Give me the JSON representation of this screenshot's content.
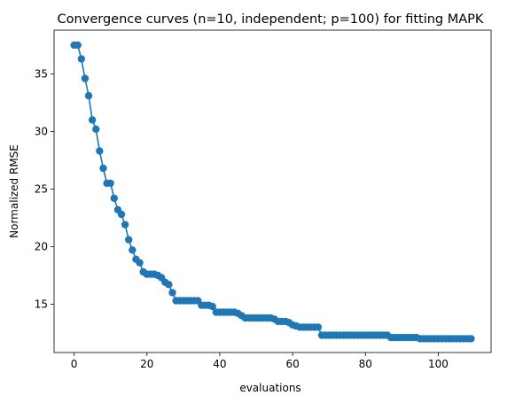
{
  "chart_data": {
    "type": "line",
    "title": "Convergence curves (n=10, independent; p=100) for fitting MAPK",
    "xlabel": "evaluations",
    "ylabel": "Normalized RMSE",
    "xlim": [
      -5.5,
      114.5
    ],
    "ylim": [
      10.8,
      38.8
    ],
    "x_ticks": [
      0,
      20,
      40,
      60,
      80,
      100
    ],
    "y_ticks": [
      15,
      20,
      25,
      30,
      35
    ],
    "grid": false,
    "legend": "none",
    "marker": "circle",
    "color": "#1f77b4",
    "series": [
      {
        "x": [
          0,
          1,
          2,
          3,
          4,
          5,
          6,
          7,
          8,
          9,
          10,
          11,
          12,
          13,
          14,
          15,
          16,
          17,
          18,
          19,
          20,
          21,
          22,
          23,
          24,
          25,
          26,
          27,
          28,
          29,
          30,
          31,
          32,
          33,
          34,
          35,
          36,
          37,
          38,
          39,
          40,
          41,
          42,
          43,
          44,
          45,
          46,
          47,
          48,
          49,
          50,
          51,
          52,
          53,
          54,
          55,
          56,
          57,
          58,
          59,
          60,
          61,
          62,
          63,
          64,
          65,
          66,
          67,
          68,
          69,
          70,
          71,
          72,
          73,
          74,
          75,
          76,
          77,
          78,
          79,
          80,
          81,
          82,
          83,
          84,
          85,
          86,
          87,
          88,
          89,
          90,
          91,
          92,
          93,
          94,
          95,
          96,
          97,
          98,
          99,
          100,
          101,
          102,
          103,
          104,
          105,
          106,
          107,
          108,
          109
        ],
        "values": [
          37.5,
          37.5,
          36.3,
          34.6,
          33.1,
          31.0,
          30.2,
          28.3,
          26.8,
          25.5,
          25.5,
          24.2,
          23.2,
          22.8,
          21.9,
          20.6,
          19.7,
          18.9,
          18.6,
          17.8,
          17.6,
          17.6,
          17.6,
          17.5,
          17.3,
          16.9,
          16.7,
          16.0,
          15.3,
          15.3,
          15.3,
          15.3,
          15.3,
          15.3,
          15.3,
          14.9,
          14.9,
          14.9,
          14.8,
          14.3,
          14.3,
          14.3,
          14.3,
          14.3,
          14.3,
          14.2,
          14.0,
          13.8,
          13.8,
          13.8,
          13.8,
          13.8,
          13.8,
          13.8,
          13.8,
          13.7,
          13.5,
          13.5,
          13.5,
          13.4,
          13.2,
          13.1,
          13.0,
          13.0,
          13.0,
          13.0,
          13.0,
          13.0,
          12.3,
          12.3,
          12.3,
          12.3,
          12.3,
          12.3,
          12.3,
          12.3,
          12.3,
          12.3,
          12.3,
          12.3,
          12.3,
          12.3,
          12.3,
          12.3,
          12.3,
          12.3,
          12.3,
          12.1,
          12.1,
          12.1,
          12.1,
          12.1,
          12.1,
          12.1,
          12.1,
          12.0,
          12.0,
          12.0,
          12.0,
          12.0,
          12.0,
          12.0,
          12.0,
          12.0,
          12.0,
          12.0,
          12.0,
          12.0,
          12.0,
          12.0
        ]
      }
    ]
  }
}
